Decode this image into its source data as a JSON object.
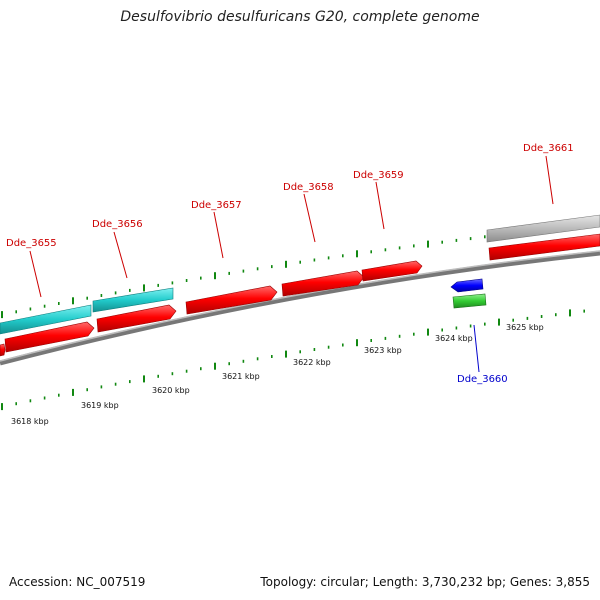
{
  "title": "Desulfovibrio desulfuricans G20, complete genome",
  "footer": {
    "accession": "Accession: NC_007519",
    "summary": "Topology: circular; Length: 3,730,232 bp; Genes: 3,855"
  },
  "colors": {
    "forward_gene": "#ff0000",
    "reverse_gene": "#0000ff",
    "cyan_feature": "#22cccc",
    "green_feature": "#33cc33",
    "gray_feature": "#bbbbbb",
    "backbone": "#888888",
    "ticks": "#118811",
    "forward_label": "#cc0000",
    "reverse_label": "#0000cc"
  },
  "scale_labels": [
    "3618 kbp",
    "3619 kbp",
    "3620 kbp",
    "3621 kbp",
    "3622 kbp",
    "3623 kbp",
    "3624 kbp",
    "3625 kbp"
  ],
  "labels": {
    "forward": [
      "Dde_3655",
      "Dde_3656",
      "Dde_3657",
      "Dde_3658",
      "Dde_3659",
      "Dde_3661"
    ],
    "reverse": [
      "Dde_3660"
    ]
  }
}
